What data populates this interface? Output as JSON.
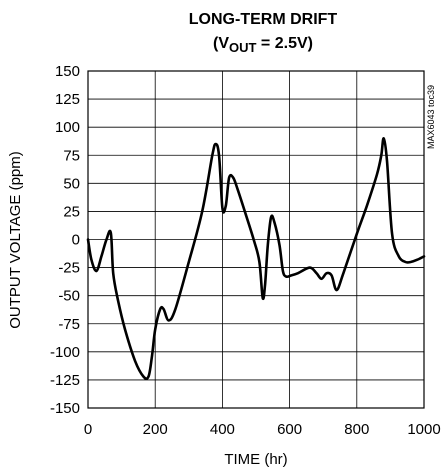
{
  "chart_data": {
    "type": "line",
    "title": "LONG-TERM DRIFT",
    "subtitle_prefix": "(V",
    "subtitle_subscript": "OUT",
    "subtitle_suffix": " = 2.5V)",
    "xlabel": "TIME (hr)",
    "ylabel": "OUTPUT VOLTAGE (ppm)",
    "side_note": "MAX6043 toc39",
    "xlim": [
      0,
      1000
    ],
    "ylim": [
      -150,
      150
    ],
    "xticks": [
      0,
      200,
      400,
      600,
      800,
      1000
    ],
    "yticks": [
      150,
      125,
      100,
      75,
      50,
      25,
      0,
      -25,
      -50,
      -75,
      -100,
      -125,
      -150
    ],
    "grid": true,
    "line_color": "#000000",
    "series": [
      {
        "x": [
          0,
          10,
          25,
          40,
          55,
          68,
          75,
          90,
          110,
          140,
          165,
          180,
          190,
          200,
          215,
          225,
          240,
          260,
          300,
          340,
          370,
          380,
          390,
          400,
          410,
          420,
          432,
          445,
          470,
          495,
          510,
          520,
          527,
          535,
          545,
          555,
          570,
          580,
          590,
          605,
          625,
          660,
          680,
          695,
          710,
          725,
          740,
          760,
          800,
          830,
          860,
          873,
          880,
          890,
          905,
          925,
          945,
          960,
          980,
          1000
        ],
        "y": [
          0,
          -18,
          -28,
          -15,
          0,
          6,
          -30,
          -55,
          -80,
          -108,
          -122,
          -122,
          -105,
          -80,
          -62,
          -62,
          -72,
          -62,
          -20,
          25,
          75,
          85,
          75,
          28,
          30,
          55,
          55,
          45,
          22,
          -2,
          -20,
          -52,
          -40,
          -5,
          20,
          15,
          -5,
          -28,
          -33,
          -32,
          -30,
          -25,
          -30,
          -35,
          -30,
          -32,
          -45,
          -30,
          5,
          30,
          58,
          75,
          90,
          70,
          5,
          -15,
          -20,
          -20,
          -18,
          -15
        ]
      }
    ]
  }
}
